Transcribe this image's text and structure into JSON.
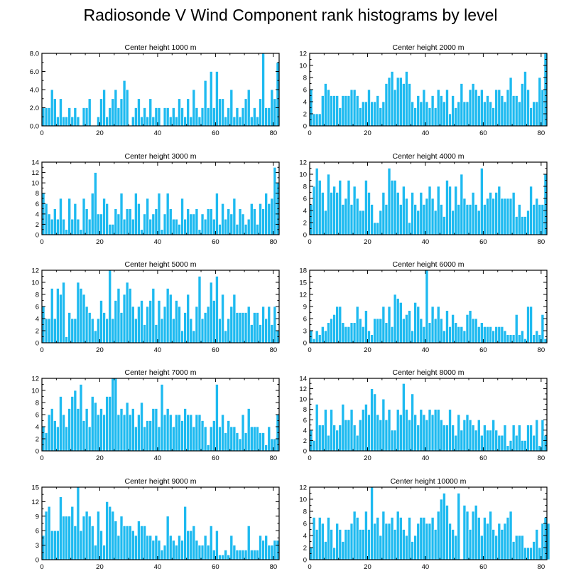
{
  "title": "Radiosonde V Wind Component rank histograms by level",
  "colors": {
    "bar": "#1ebaf0",
    "bar_edge": "#ffffff",
    "axis": "#000000"
  },
  "chart_data": [
    {
      "type": "bar",
      "title": "Center height 1000 m",
      "xlim": [
        0,
        82
      ],
      "ylim": [
        0,
        8
      ],
      "xticks": [
        0,
        20,
        40,
        60,
        80
      ],
      "yticks": [
        0,
        2,
        4,
        6,
        8
      ],
      "ytick_labels": [
        "0.0",
        "2.0",
        "4.0",
        "6.0",
        "8.0"
      ],
      "values": [
        2,
        2,
        2,
        4,
        3,
        1,
        3,
        1,
        1,
        2,
        1,
        2,
        1,
        0,
        2,
        2,
        3,
        0,
        0,
        1,
        3,
        4,
        1,
        2,
        3,
        4,
        2,
        3,
        5,
        4,
        0,
        1,
        2,
        3,
        1,
        2,
        1,
        3,
        1,
        2,
        2,
        0,
        2,
        2,
        1,
        2,
        1,
        3,
        2,
        1,
        3,
        1,
        4,
        2,
        1,
        2,
        5,
        2,
        6,
        2,
        6,
        3,
        3,
        1,
        2,
        4,
        1,
        2,
        1,
        2,
        3,
        4,
        1,
        2,
        1,
        3,
        8,
        2,
        2,
        4,
        3,
        7
      ]
    },
    {
      "type": "bar",
      "title": "Center height 2000 m",
      "xlim": [
        0,
        82
      ],
      "ylim": [
        0,
        12
      ],
      "xticks": [
        0,
        20,
        40,
        60,
        80
      ],
      "yticks": [
        0,
        2,
        4,
        6,
        8,
        10,
        12
      ],
      "values": [
        6,
        2,
        2,
        2,
        5,
        7,
        6,
        5,
        5,
        5,
        3,
        5,
        5,
        5,
        6,
        6,
        5,
        3,
        4,
        4,
        6,
        4,
        4,
        5,
        3,
        4,
        7,
        8,
        9,
        6,
        8,
        8,
        7,
        9,
        7,
        4,
        3,
        5,
        4,
        6,
        4,
        3,
        5,
        3,
        6,
        5,
        4,
        6,
        2,
        5,
        3,
        4,
        7,
        4,
        4,
        6,
        7,
        6,
        5,
        6,
        4,
        5,
        4,
        3,
        6,
        6,
        5,
        4,
        6,
        8,
        5,
        5,
        4,
        7,
        9,
        6,
        3,
        4,
        4,
        8,
        6,
        12
      ]
    },
    {
      "type": "bar",
      "title": "Center height 3000 m",
      "xlim": [
        0,
        82
      ],
      "ylim": [
        0,
        14
      ],
      "xticks": [
        0,
        20,
        40,
        60,
        80
      ],
      "yticks": [
        0,
        2,
        4,
        6,
        8,
        10,
        12,
        14
      ],
      "values": [
        8,
        6,
        4,
        3,
        5,
        3,
        7,
        3,
        1,
        7,
        3,
        6,
        3,
        1,
        7,
        5,
        3,
        8,
        12,
        4,
        4,
        7,
        6,
        2,
        2,
        5,
        4,
        8,
        3,
        5,
        5,
        3,
        8,
        6,
        1,
        4,
        7,
        3,
        4,
        5,
        8,
        1,
        4,
        8,
        5,
        3,
        3,
        2,
        7,
        3,
        5,
        4,
        4,
        5,
        1,
        4,
        3,
        5,
        5,
        3,
        8,
        2,
        6,
        3,
        5,
        4,
        7,
        2,
        5,
        4,
        2,
        3,
        6,
        5,
        2,
        6,
        5,
        8,
        6,
        7,
        13,
        10
      ]
    },
    {
      "type": "bar",
      "title": "Center height 4000 m",
      "xlim": [
        0,
        82
      ],
      "ylim": [
        0,
        12
      ],
      "xticks": [
        0,
        20,
        40,
        60,
        80
      ],
      "yticks": [
        0,
        2,
        4,
        6,
        8,
        10,
        12
      ],
      "values": [
        5,
        8,
        11,
        9,
        7,
        4,
        10,
        7,
        8,
        7,
        9,
        5,
        6,
        9,
        5,
        8,
        6,
        4,
        4,
        9,
        7,
        5,
        2,
        2,
        4,
        7,
        5,
        11,
        9,
        9,
        7,
        5,
        8,
        6,
        2,
        7,
        5,
        4,
        7,
        5,
        6,
        8,
        6,
        4,
        8,
        5,
        3,
        9,
        8,
        4,
        8,
        5,
        10,
        6,
        5,
        5,
        7,
        5,
        4,
        11,
        5,
        6,
        7,
        6,
        7,
        8,
        6,
        6,
        6,
        6,
        7,
        3,
        5,
        3,
        3,
        4,
        8,
        5,
        6,
        5,
        5,
        10
      ]
    },
    {
      "type": "bar",
      "title": "Center height 5000 m",
      "xlim": [
        0,
        82
      ],
      "ylim": [
        0,
        12
      ],
      "xticks": [
        0,
        20,
        40,
        60,
        80
      ],
      "yticks": [
        0,
        2,
        4,
        6,
        8,
        10,
        12
      ],
      "values": [
        6,
        4,
        4,
        9,
        4,
        9,
        8,
        10,
        1,
        5,
        4,
        4,
        10,
        9,
        8,
        6,
        5,
        4,
        2,
        4,
        7,
        5,
        4,
        12,
        4,
        7,
        9,
        5,
        8,
        10,
        9,
        6,
        4,
        6,
        7,
        3,
        6,
        7,
        9,
        3,
        7,
        4,
        6,
        9,
        8,
        4,
        7,
        6,
        2,
        5,
        8,
        4,
        2,
        6,
        11,
        4,
        5,
        6,
        10,
        7,
        11,
        4,
        8,
        2,
        4,
        6,
        8,
        5,
        5,
        5,
        5,
        6,
        3,
        5,
        5,
        3,
        6,
        4,
        6,
        3,
        6,
        2
      ]
    },
    {
      "type": "bar",
      "title": "Center height 6000 m",
      "xlim": [
        0,
        82
      ],
      "ylim": [
        0,
        18
      ],
      "xticks": [
        0,
        20,
        40,
        60,
        80
      ],
      "yticks": [
        0,
        3,
        6,
        9,
        12,
        15,
        18
      ],
      "values": [
        3,
        1,
        3,
        2,
        4,
        3,
        5,
        6,
        7,
        9,
        9,
        5,
        4,
        4,
        5,
        5,
        9,
        6,
        4,
        8,
        3,
        2,
        6,
        6,
        6,
        9,
        5,
        9,
        4,
        12,
        11,
        10,
        6,
        7,
        8,
        3,
        10,
        9,
        6,
        4,
        18,
        5,
        9,
        6,
        9,
        6,
        3,
        8,
        4,
        7,
        5,
        4,
        4,
        3,
        7,
        8,
        6,
        6,
        4,
        5,
        4,
        4,
        4,
        3,
        4,
        4,
        4,
        3,
        2,
        2,
        2,
        7,
        2,
        3,
        1,
        9,
        9,
        2,
        3,
        2,
        7,
        1
      ]
    },
    {
      "type": "bar",
      "title": "Center height 7000 m",
      "xlim": [
        0,
        82
      ],
      "ylim": [
        0,
        12
      ],
      "xticks": [
        0,
        20,
        40,
        60,
        80
      ],
      "yticks": [
        0,
        2,
        4,
        6,
        8,
        10,
        12
      ],
      "values": [
        4,
        3,
        6,
        7,
        5,
        4,
        9,
        6,
        4,
        7,
        9,
        10,
        7,
        11,
        5,
        7,
        4,
        9,
        8,
        6,
        7,
        6,
        9,
        9,
        12,
        12,
        6,
        7,
        6,
        8,
        6,
        7,
        4,
        6,
        8,
        4,
        5,
        5,
        7,
        7,
        4,
        11,
        6,
        7,
        6,
        4,
        6,
        6,
        5,
        7,
        6,
        6,
        4,
        6,
        6,
        5,
        4,
        1,
        4,
        5,
        11,
        4,
        6,
        3,
        5,
        4,
        4,
        3,
        2,
        6,
        3,
        7,
        4,
        4,
        4,
        3,
        3,
        1,
        4,
        2,
        2,
        6
      ]
    },
    {
      "type": "bar",
      "title": "Center height 8000 m",
      "xlim": [
        0,
        82
      ],
      "ylim": [
        0,
        14
      ],
      "xticks": [
        0,
        20,
        40,
        60,
        80
      ],
      "yticks": [
        0,
        2,
        4,
        6,
        8,
        10,
        12,
        14
      ],
      "values": [
        4,
        2,
        9,
        5,
        5,
        8,
        3,
        8,
        5,
        4,
        5,
        9,
        6,
        6,
        8,
        5,
        3,
        6,
        8,
        9,
        7,
        12,
        11,
        7,
        6,
        10,
        6,
        8,
        4,
        4,
        8,
        7,
        13,
        8,
        6,
        11,
        7,
        5,
        8,
        7,
        6,
        8,
        7,
        8,
        8,
        6,
        5,
        5,
        8,
        5,
        3,
        7,
        4,
        6,
        7,
        6,
        5,
        4,
        6,
        3,
        5,
        4,
        4,
        6,
        4,
        3,
        3,
        5,
        1,
        2,
        5,
        3,
        5,
        2,
        2,
        5,
        5,
        3,
        6,
        1,
        6,
        3
      ]
    },
    {
      "type": "bar",
      "title": "Center height 9000 m",
      "xlim": [
        0,
        82
      ],
      "ylim": [
        0,
        15
      ],
      "xticks": [
        0,
        20,
        40,
        60,
        80
      ],
      "yticks": [
        0,
        3,
        6,
        9,
        12,
        15
      ],
      "values": [
        5,
        10,
        11,
        6,
        6,
        6,
        13,
        9,
        9,
        9,
        11,
        7,
        15,
        6,
        9,
        10,
        9,
        7,
        3,
        10,
        6,
        3,
        12,
        11,
        10,
        8,
        5,
        9,
        7,
        7,
        7,
        6,
        5,
        8,
        7,
        7,
        5,
        5,
        4,
        5,
        4,
        2,
        3,
        9,
        5,
        4,
        3,
        5,
        4,
        11,
        6,
        6,
        7,
        4,
        3,
        3,
        5,
        3,
        7,
        2,
        6,
        1,
        1,
        2,
        1,
        5,
        3,
        2,
        2,
        2,
        2,
        7,
        2,
        2,
        2,
        5,
        4,
        5,
        3,
        3,
        4,
        4
      ]
    },
    {
      "type": "bar",
      "title": "Center height 10000 m",
      "xlim": [
        0,
        82
      ],
      "ylim": [
        0,
        12
      ],
      "xticks": [
        0,
        20,
        40,
        60,
        80
      ],
      "yticks": [
        0,
        2,
        4,
        6,
        8,
        10,
        12
      ],
      "values": [
        2,
        7,
        5,
        7,
        6,
        3,
        7,
        5,
        2,
        6,
        5,
        3,
        5,
        5,
        6,
        8,
        7,
        5,
        5,
        8,
        5,
        12,
        6,
        7,
        4,
        8,
        6,
        6,
        7,
        5,
        8,
        7,
        5,
        4,
        7,
        3,
        4,
        6,
        7,
        7,
        6,
        6,
        7,
        5,
        8,
        10,
        11,
        9,
        6,
        5,
        4,
        11,
        0,
        9,
        8,
        5,
        8,
        9,
        7,
        4,
        7,
        6,
        8,
        5,
        4,
        6,
        5,
        6,
        7,
        8,
        3,
        4,
        4,
        4,
        2,
        2,
        2,
        3,
        5,
        2,
        6,
        7,
        6
      ]
    }
  ]
}
